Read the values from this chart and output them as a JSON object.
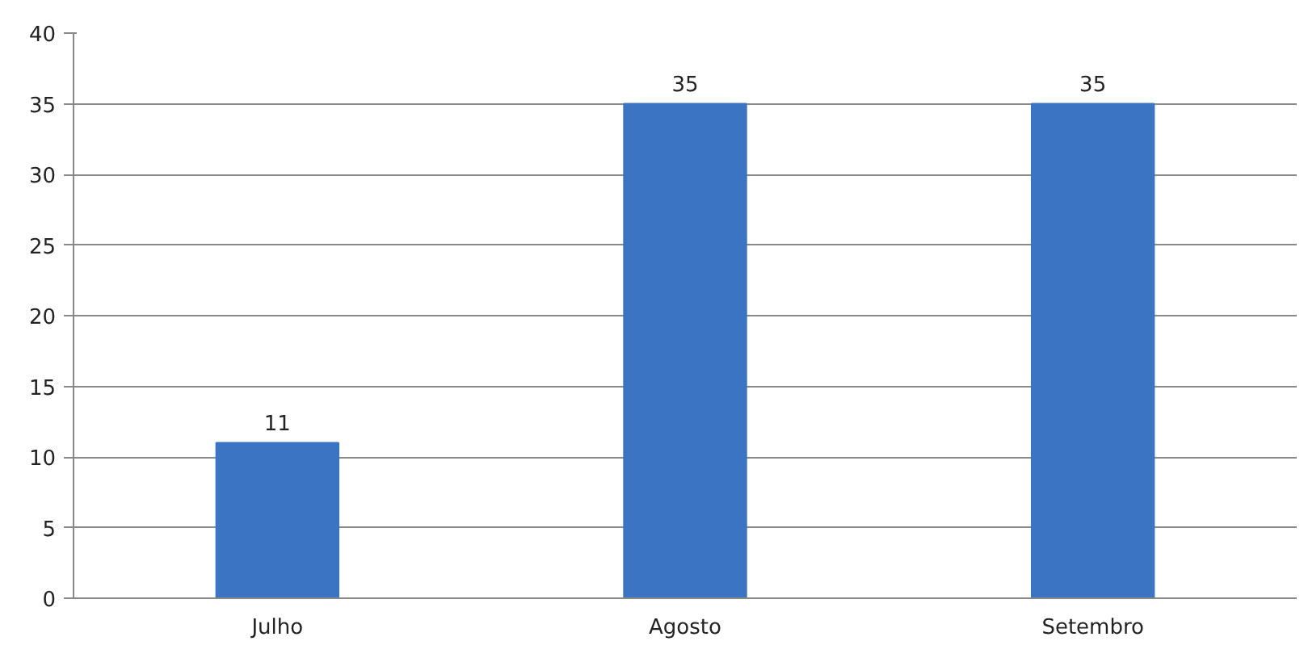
{
  "chart_data": {
    "type": "bar",
    "categories": [
      "Julho",
      "Agosto",
      "Setembro"
    ],
    "values": [
      11,
      35,
      35
    ],
    "color": "#3a74c2",
    "ylim": [
      0,
      40
    ],
    "yticks": [
      0,
      5,
      10,
      15,
      20,
      25,
      30,
      35,
      40
    ],
    "grid": "y",
    "data_labels": true
  }
}
